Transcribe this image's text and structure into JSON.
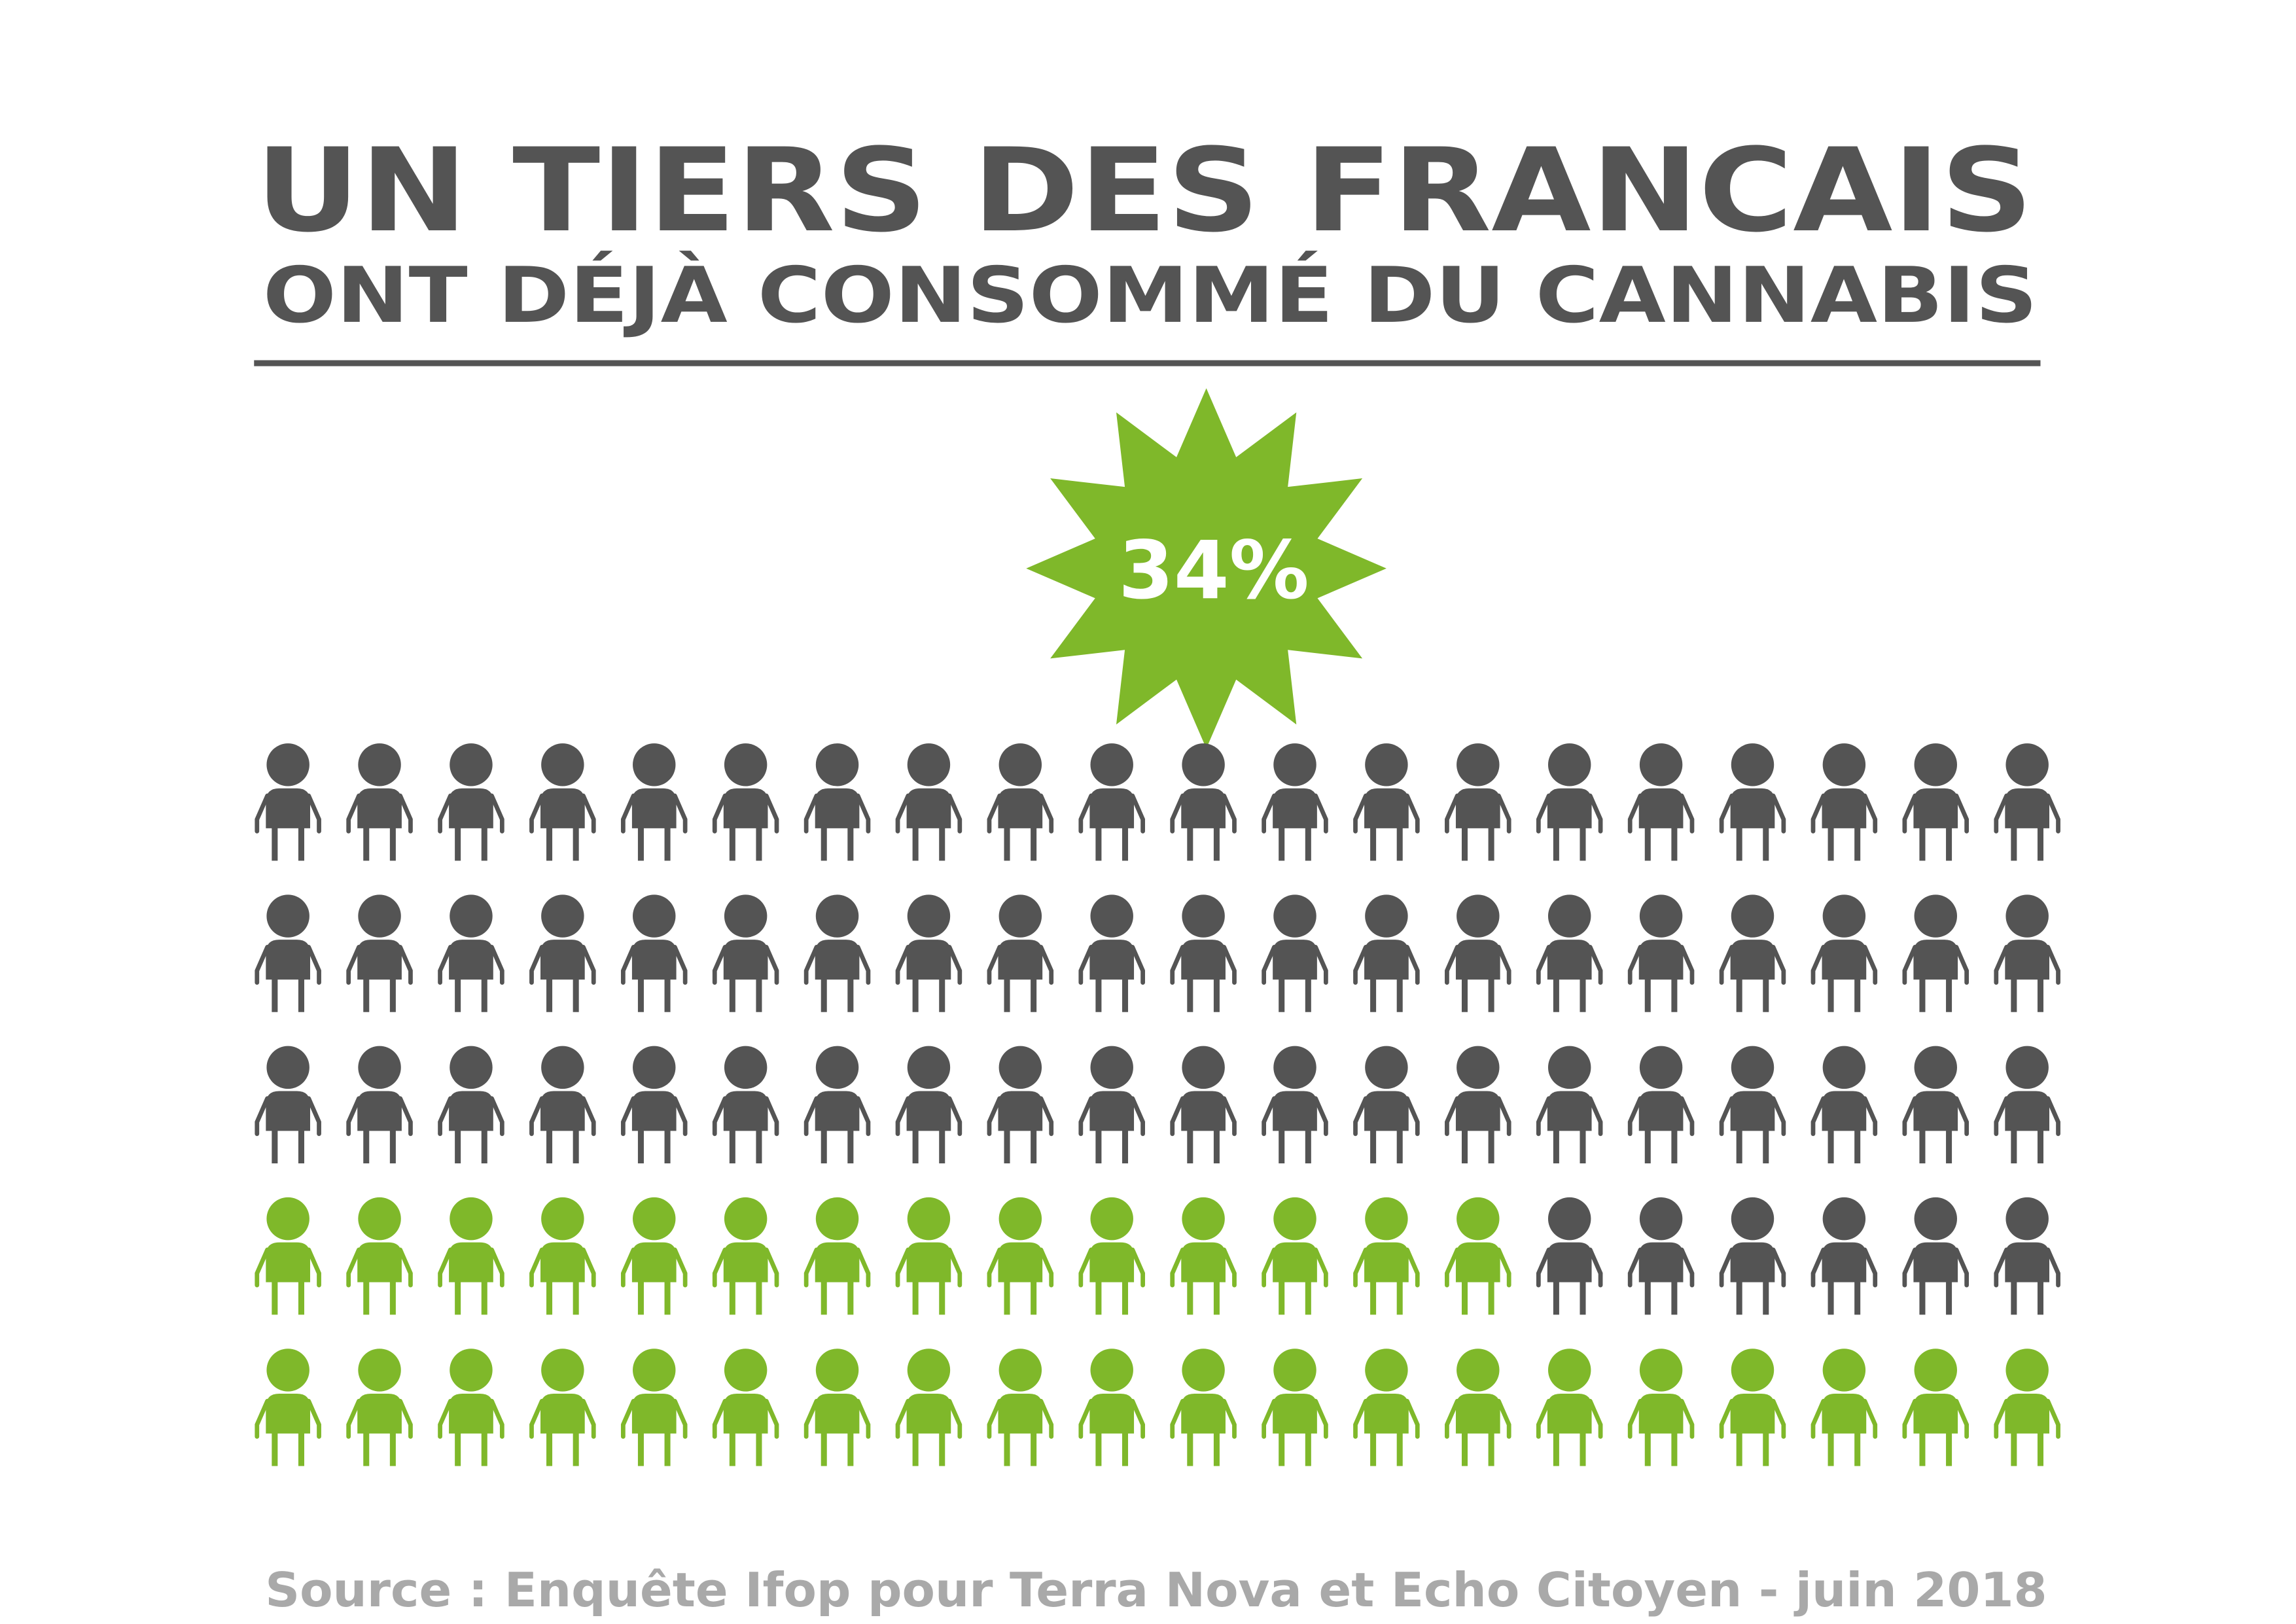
{
  "chart_data": {
    "type": "pictogram",
    "title": "UN TIERS DES FRANCAIS",
    "subtitle": "ONT DÉJÀ CONSOMMÉ DU CANNABIS",
    "values": [
      34
    ],
    "value_labels": [
      "34%"
    ],
    "color": "#7fb82a",
    "rest_color": "#545454",
    "source": "Source : Enquête Ifop pour Terra Nova et Echo Citoyen - juin 2018"
  }
}
